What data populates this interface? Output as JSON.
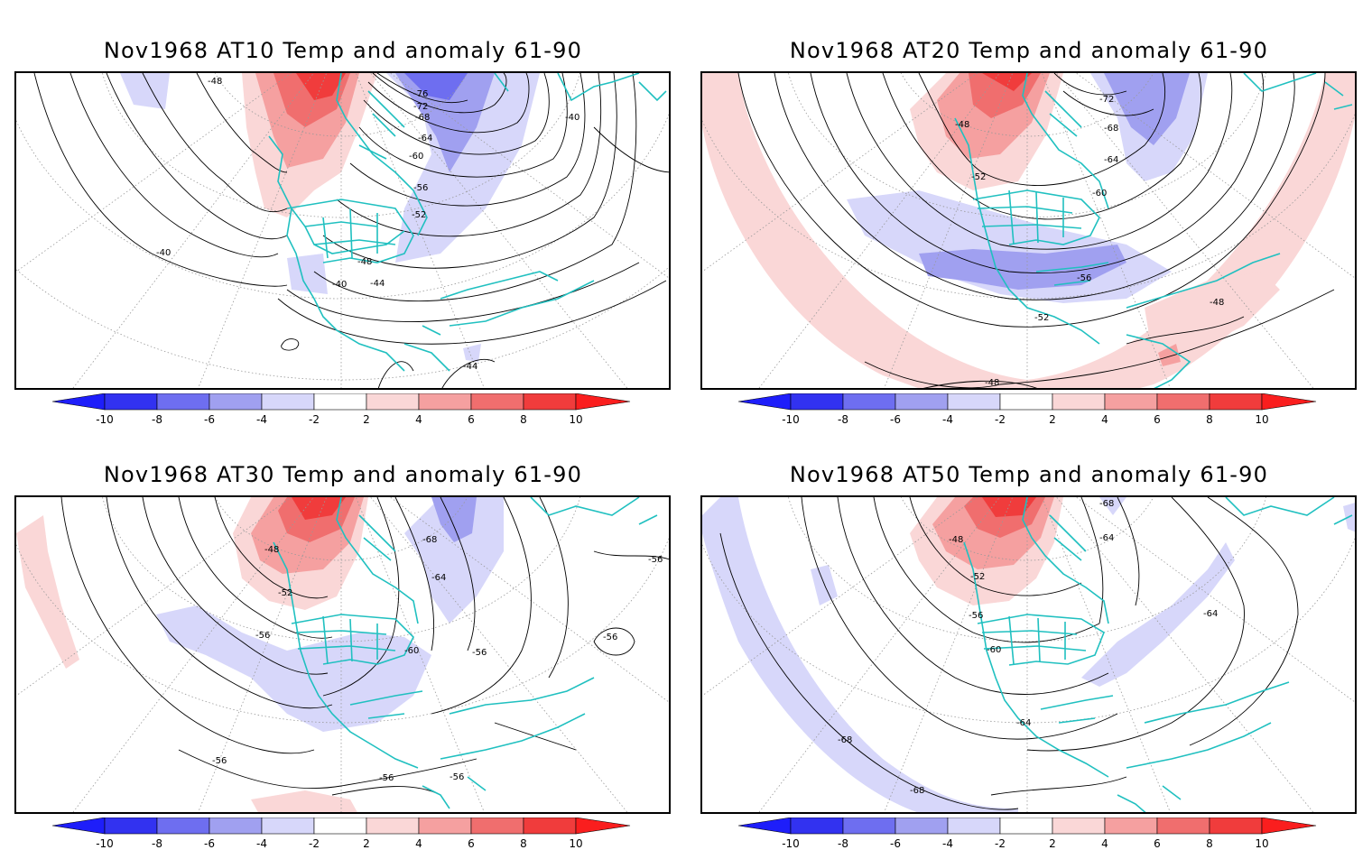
{
  "panels": [
    {
      "title": "Nov1968 AT10 Temp and anomaly 61-90",
      "contour_labels": [
        "-76",
        "-72",
        "-68",
        "-64",
        "-60",
        "-56",
        "-52",
        "-48",
        "-48",
        "-44",
        "-44",
        "-40",
        "-40",
        "-40"
      ]
    },
    {
      "title": "Nov1968 AT20 Temp and anomaly 61-90",
      "contour_labels": [
        "-72",
        "-68",
        "-64",
        "-60",
        "-56",
        "-52",
        "-52",
        "-48",
        "-48",
        "-48"
      ]
    },
    {
      "title": "Nov1968 AT30 Temp and anomaly 61-90",
      "contour_labels": [
        "-68",
        "-64",
        "-60",
        "-56",
        "-56",
        "-56",
        "-56",
        "-56",
        "-56",
        "-56",
        "-52",
        "-48"
      ]
    },
    {
      "title": "Nov1968 AT50 Temp and anomaly 61-90",
      "contour_labels": [
        "-68",
        "-64",
        "-64",
        "-64",
        "-60",
        "-56",
        "-52",
        "-48",
        "-68",
        "-68"
      ]
    }
  ],
  "colorbar": {
    "labels": [
      "-10",
      "-8",
      "-6",
      "-4",
      "-2",
      "2",
      "4",
      "6",
      "8",
      "10"
    ],
    "colors": [
      "#1e1efa",
      "#3232f0",
      "#6e6ef0",
      "#a0a0f0",
      "#d7d7fa",
      "#ffffff",
      "#fad7d7",
      "#f5a0a0",
      "#f06e6e",
      "#f03c3c",
      "#fa1e1e"
    ]
  },
  "coastline_color": "#20c0c0"
}
